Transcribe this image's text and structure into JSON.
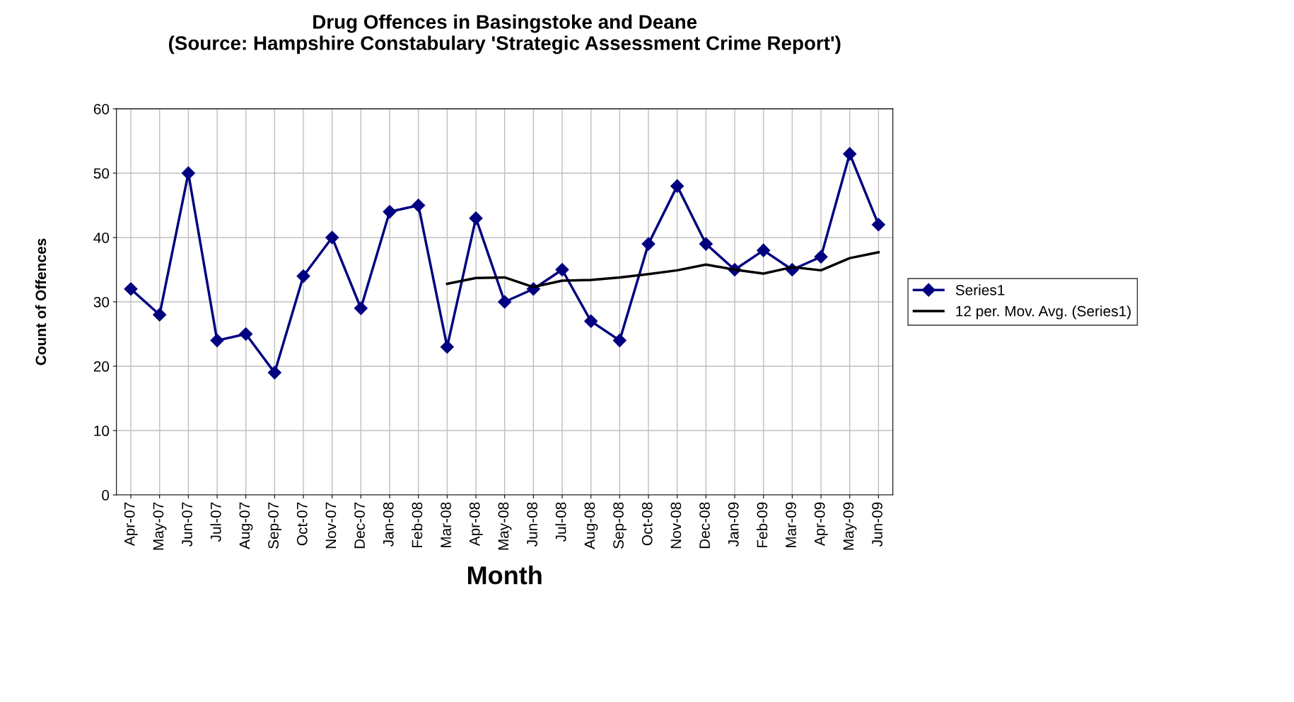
{
  "chart_data": {
    "type": "line",
    "title": "Drug Offences in Basingstoke and Deane\n(Source: Hampshire Constabulary 'Strategic Assessment Crime Report')",
    "xlabel": "Month",
    "ylabel": "Count of Offences",
    "categories": [
      "Apr-07",
      "May-07",
      "Jun-07",
      "Jul-07",
      "Aug-07",
      "Sep-07",
      "Oct-07",
      "Nov-07",
      "Dec-07",
      "Jan-08",
      "Feb-08",
      "Mar-08",
      "Apr-08",
      "May-08",
      "Jun-08",
      "Jul-08",
      "Aug-08",
      "Sep-08",
      "Oct-08",
      "Nov-08",
      "Dec-08",
      "Jan-09",
      "Feb-09",
      "Mar-09",
      "Apr-09",
      "May-09",
      "Jun-09"
    ],
    "series": [
      {
        "name": "Series1",
        "color": "#000080",
        "marker": "diamond",
        "values": [
          32,
          28,
          50,
          24,
          25,
          19,
          34,
          40,
          29,
          44,
          45,
          23,
          43,
          30,
          32,
          35,
          27,
          24,
          39,
          48,
          39,
          35,
          38,
          35,
          37,
          53,
          42
        ]
      },
      {
        "name": "12 per. Mov. Avg. (Series1)",
        "color": "#000000",
        "marker": "none",
        "values": [
          null,
          null,
          null,
          null,
          null,
          null,
          null,
          null,
          null,
          null,
          null,
          32.8,
          33.7,
          33.8,
          32.3,
          33.3,
          33.4,
          33.8,
          34.3,
          34.9,
          35.8,
          35.0,
          34.4,
          35.4,
          34.9,
          36.8,
          37.7
        ]
      }
    ],
    "ylim": [
      0,
      60
    ],
    "yticks": [
      0,
      10,
      20,
      30,
      40,
      50,
      60
    ],
    "grid": true,
    "legend": "right",
    "line_style": "solid"
  }
}
